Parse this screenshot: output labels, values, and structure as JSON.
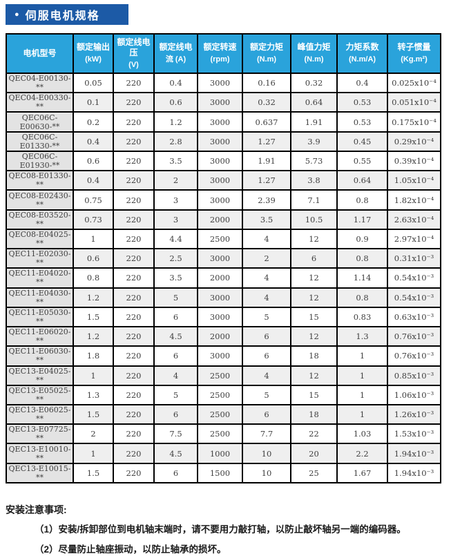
{
  "banner": {
    "bullet": "●",
    "title": "伺服电机规格"
  },
  "colors": {
    "banner_blue": "#1c5aa6",
    "header_blue": "#2aa3db",
    "border": "#000000",
    "stripe": "#efefef",
    "model_cell": "#e3e3e3",
    "cell_text": "#404040"
  },
  "table": {
    "columns": [
      {
        "line1": "电机型号",
        "line2": ""
      },
      {
        "line1": "额定输出",
        "line2": "(kW)"
      },
      {
        "line1": "额定线电压",
        "line2": "(V)"
      },
      {
        "line1": "额定线电",
        "line2": "流 (A)"
      },
      {
        "line1": "额定转速",
        "line2": "(rpm)"
      },
      {
        "line1": "额定力矩",
        "line2": "(N.m)"
      },
      {
        "line1": "峰值力矩",
        "line2": "(N.m)"
      },
      {
        "line1": "力矩系数",
        "line2": "(N.m/A)"
      },
      {
        "line1": "转子惯量",
        "line2": "(Kg.m²)"
      }
    ],
    "rows": [
      [
        "QEC04-E00130-**",
        "0.05",
        "220",
        "0.4",
        "3000",
        "0.16",
        "0.32",
        "0.4",
        "0.025x10⁻⁴"
      ],
      [
        "QEC04-E00330-**",
        "0.1",
        "220",
        "0.6",
        "3000",
        "0.32",
        "0.64",
        "0.53",
        "0.051x10⁻⁴"
      ],
      [
        "QEC06C-E00630-**",
        "0.2",
        "220",
        "1.2",
        "3000",
        "0.637",
        "1.91",
        "0.53",
        "0.175x10⁻⁴"
      ],
      [
        "QEC06C-E01330-**",
        "0.4",
        "220",
        "2.8",
        "3000",
        "1.27",
        "3.9",
        "0.45",
        "0.29x10⁻⁴"
      ],
      [
        "QEC06C-E01930-**",
        "0.6",
        "220",
        "3.5",
        "3000",
        "1.91",
        "5.73",
        "0.55",
        "0.39x10⁻⁴"
      ],
      [
        "QEC08-E01330-**",
        "0.4",
        "220",
        "2",
        "3000",
        "1.27",
        "3.8",
        "0.64",
        "1.05x10⁻⁴"
      ],
      [
        "QEC08-E02430-**",
        "0.75",
        "220",
        "3",
        "3000",
        "2.39",
        "7.1",
        "0.8",
        "1.82x10⁻⁴"
      ],
      [
        "QEC08-E03520-**",
        "0.73",
        "220",
        "3",
        "2000",
        "3.5",
        "10.5",
        "1.17",
        "2.63x10⁻⁴"
      ],
      [
        "QEC08-E04025-**",
        "1",
        "220",
        "4.4",
        "2500",
        "4",
        "12",
        "0.9",
        "2.97x10⁻⁴"
      ],
      [
        "QEC11-E02030-**",
        "0.6",
        "220",
        "2.5",
        "3000",
        "2",
        "6",
        "0.8",
        "0.31x10⁻³"
      ],
      [
        "QEC11-E04020-**",
        "0.8",
        "220",
        "3.5",
        "2000",
        "4",
        "12",
        "1.14",
        "0.54x10⁻³"
      ],
      [
        "QEC11-E04030-**",
        "1.2",
        "220",
        "5",
        "3000",
        "4",
        "12",
        "0.8",
        "0.54x10⁻³"
      ],
      [
        "QEC11-E05030-**",
        "1.5",
        "220",
        "6",
        "3000",
        "5",
        "15",
        "0.83",
        "0.63x10⁻³"
      ],
      [
        "QEC11-E06020-**",
        "1.2",
        "220",
        "4.5",
        "2000",
        "6",
        "12",
        "1.3",
        "0.76x10⁻³"
      ],
      [
        "QEC11-E06030-**",
        "1.8",
        "220",
        "6",
        "3000",
        "6",
        "18",
        "1",
        "0.76x10⁻³"
      ],
      [
        "QEC13-E04025-**",
        "1",
        "220",
        "4",
        "2500",
        "4",
        "12",
        "1",
        "0.85x10⁻³"
      ],
      [
        "QEC13-E05025-**",
        "1.3",
        "220",
        "5",
        "2500",
        "5",
        "15",
        "1",
        "1.06x10⁻³"
      ],
      [
        "QEC13-E06025-**",
        "1.5",
        "220",
        "6",
        "2500",
        "6",
        "18",
        "1",
        "1.26x10⁻³"
      ],
      [
        "QEC13-E07725-**",
        "2",
        "220",
        "7.5",
        "2500",
        "7.7",
        "22",
        "1.03",
        "1.53x10⁻³"
      ],
      [
        "QEC13-E10010-**",
        "1",
        "220",
        "4.5",
        "1000",
        "10",
        "20",
        "2.2",
        "1.94x10⁻³"
      ],
      [
        "QEC13-E10015-**",
        "1.5",
        "220",
        "6",
        "1500",
        "10",
        "25",
        "1.67",
        "1.94x10⁻³"
      ]
    ]
  },
  "notes": {
    "title": "安装注意事项:",
    "items": [
      "（1）安装/拆卸部位到电机轴末端时，请不要用力敲打轴，以防止敲坏轴另一端的编码器。",
      "（2）尽量防止轴座振动，以防止轴承的损坏。"
    ]
  }
}
